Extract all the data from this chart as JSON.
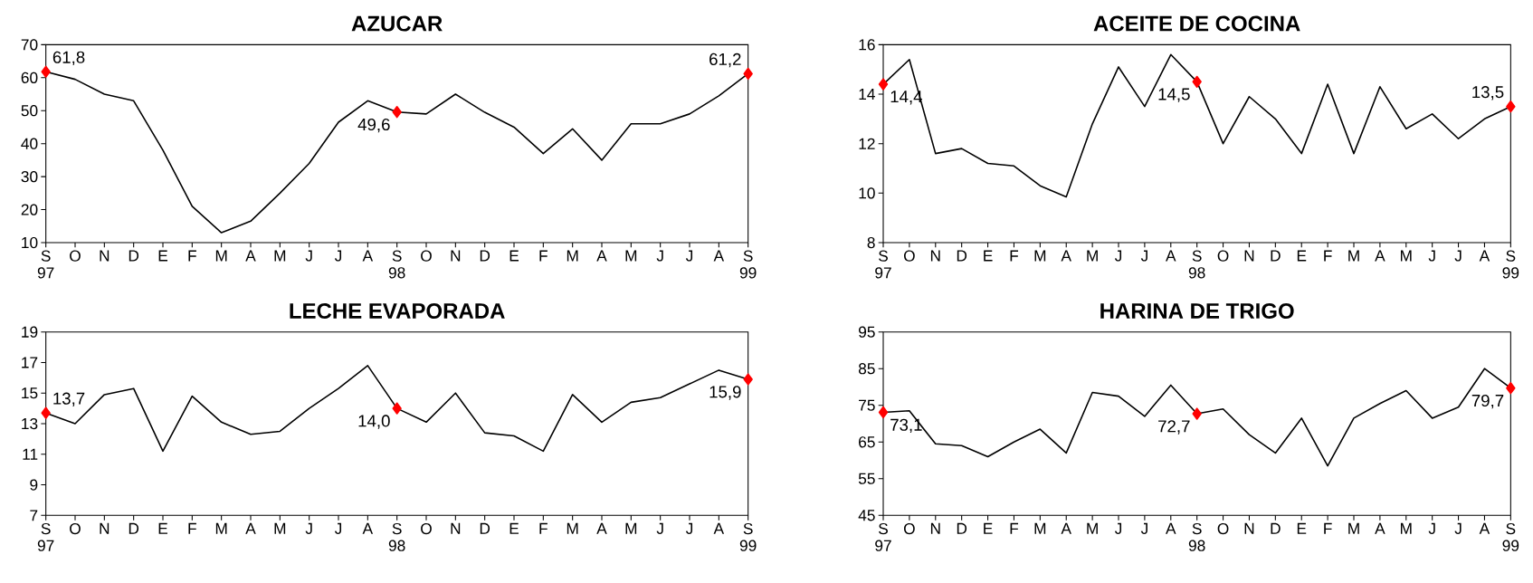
{
  "chart_data": [
    {
      "type": "line",
      "title": "AZUCAR",
      "categories": [
        "S 97",
        "O",
        "N",
        "D",
        "E",
        "F",
        "M",
        "A",
        "M",
        "J",
        "J",
        "A",
        "S 98",
        "O",
        "N",
        "D",
        "E",
        "F",
        "M",
        "A",
        "M",
        "J",
        "J",
        "A",
        "S 99"
      ],
      "ylim": [
        10,
        70
      ],
      "yticks": [
        10,
        20,
        30,
        40,
        50,
        60,
        70
      ],
      "grid": false,
      "series": [
        {
          "color": "#000000",
          "values": [
            61.8,
            59.5,
            55,
            53,
            38,
            21,
            13,
            16.5,
            25,
            34,
            46.5,
            53,
            49.6,
            49,
            55,
            49.5,
            45,
            37,
            44.5,
            35,
            46,
            46,
            49,
            54.5,
            61.2
          ]
        },
        {
          "type": "scatter",
          "marker": "diamond",
          "color": "#ff0000",
          "x": [
            "S 97",
            "S 98",
            "S 99"
          ],
          "values": [
            61.8,
            49.6,
            61.2
          ],
          "value_labels": [
            "61,8",
            "49,6",
            "61,2"
          ]
        }
      ]
    },
    {
      "type": "line",
      "title": "ACEITE DE COCINA",
      "categories": [
        "S 97",
        "O",
        "N",
        "D",
        "E",
        "F",
        "M",
        "A",
        "M",
        "J",
        "J",
        "A",
        "S 98",
        "O",
        "N",
        "D",
        "E",
        "F",
        "M",
        "A",
        "M",
        "J",
        "J",
        "A",
        "S 99"
      ],
      "ylim": [
        8,
        16
      ],
      "yticks": [
        8,
        10,
        12,
        14,
        16
      ],
      "grid": false,
      "series": [
        {
          "color": "#000000",
          "values": [
            14.4,
            15.4,
            11.6,
            11.8,
            11.2,
            11.1,
            10.3,
            9.85,
            12.8,
            15.1,
            13.5,
            15.6,
            14.5,
            12.0,
            13.9,
            13.0,
            11.6,
            14.4,
            11.6,
            14.3,
            12.6,
            13.2,
            12.2,
            13.0,
            13.5
          ]
        },
        {
          "type": "scatter",
          "marker": "diamond",
          "color": "#ff0000",
          "x": [
            "S 97",
            "S 98",
            "S 99"
          ],
          "values": [
            14.4,
            14.5,
            13.5
          ],
          "value_labels": [
            "14,4",
            "14,5",
            "13,5"
          ]
        }
      ]
    },
    {
      "type": "line",
      "title": "LECHE EVAPORADA",
      "categories": [
        "S 97",
        "O",
        "N",
        "D",
        "E",
        "F",
        "M",
        "A",
        "M",
        "J",
        "J",
        "A",
        "S 98",
        "O",
        "N",
        "D",
        "E",
        "F",
        "M",
        "A",
        "M",
        "J",
        "J",
        "A",
        "S 99"
      ],
      "ylim": [
        7,
        19
      ],
      "yticks": [
        7,
        9,
        11,
        13,
        15,
        17,
        19
      ],
      "grid": false,
      "series": [
        {
          "color": "#000000",
          "values": [
            13.7,
            13.0,
            14.9,
            15.3,
            11.2,
            14.8,
            13.1,
            12.3,
            12.5,
            14.0,
            15.3,
            16.8,
            14.0,
            13.1,
            15.0,
            12.4,
            12.2,
            11.2,
            14.9,
            13.1,
            14.4,
            14.7,
            15.6,
            16.5,
            15.9
          ]
        },
        {
          "type": "scatter",
          "marker": "diamond",
          "color": "#ff0000",
          "x": [
            "S 97",
            "S 98",
            "S 99"
          ],
          "values": [
            13.7,
            14.0,
            15.9
          ],
          "value_labels": [
            "13,7",
            "14,0",
            "15,9"
          ]
        }
      ]
    },
    {
      "type": "line",
      "title": "HARINA DE TRIGO",
      "categories": [
        "S 97",
        "O",
        "N",
        "D",
        "E",
        "F",
        "M",
        "A",
        "M",
        "J",
        "J",
        "A",
        "S 98",
        "O",
        "N",
        "D",
        "E",
        "F",
        "M",
        "A",
        "M",
        "J",
        "J",
        "A",
        "S 99"
      ],
      "ylim": [
        45,
        95
      ],
      "yticks": [
        45,
        55,
        65,
        75,
        85,
        95
      ],
      "grid": false,
      "series": [
        {
          "color": "#000000",
          "values": [
            73.1,
            73.5,
            64.5,
            64,
            61,
            65,
            68.5,
            62,
            78.5,
            77.5,
            72,
            80.5,
            72.7,
            74,
            67,
            62,
            71.5,
            58.5,
            71.5,
            75.5,
            79,
            71.5,
            74.5,
            85,
            79.7
          ]
        },
        {
          "type": "scatter",
          "marker": "diamond",
          "color": "#ff0000",
          "x": [
            "S 97",
            "S 98",
            "S 99"
          ],
          "values": [
            73.1,
            72.7,
            79.7
          ],
          "value_labels": [
            "73,1",
            "72,7",
            "79,7"
          ]
        }
      ]
    }
  ]
}
